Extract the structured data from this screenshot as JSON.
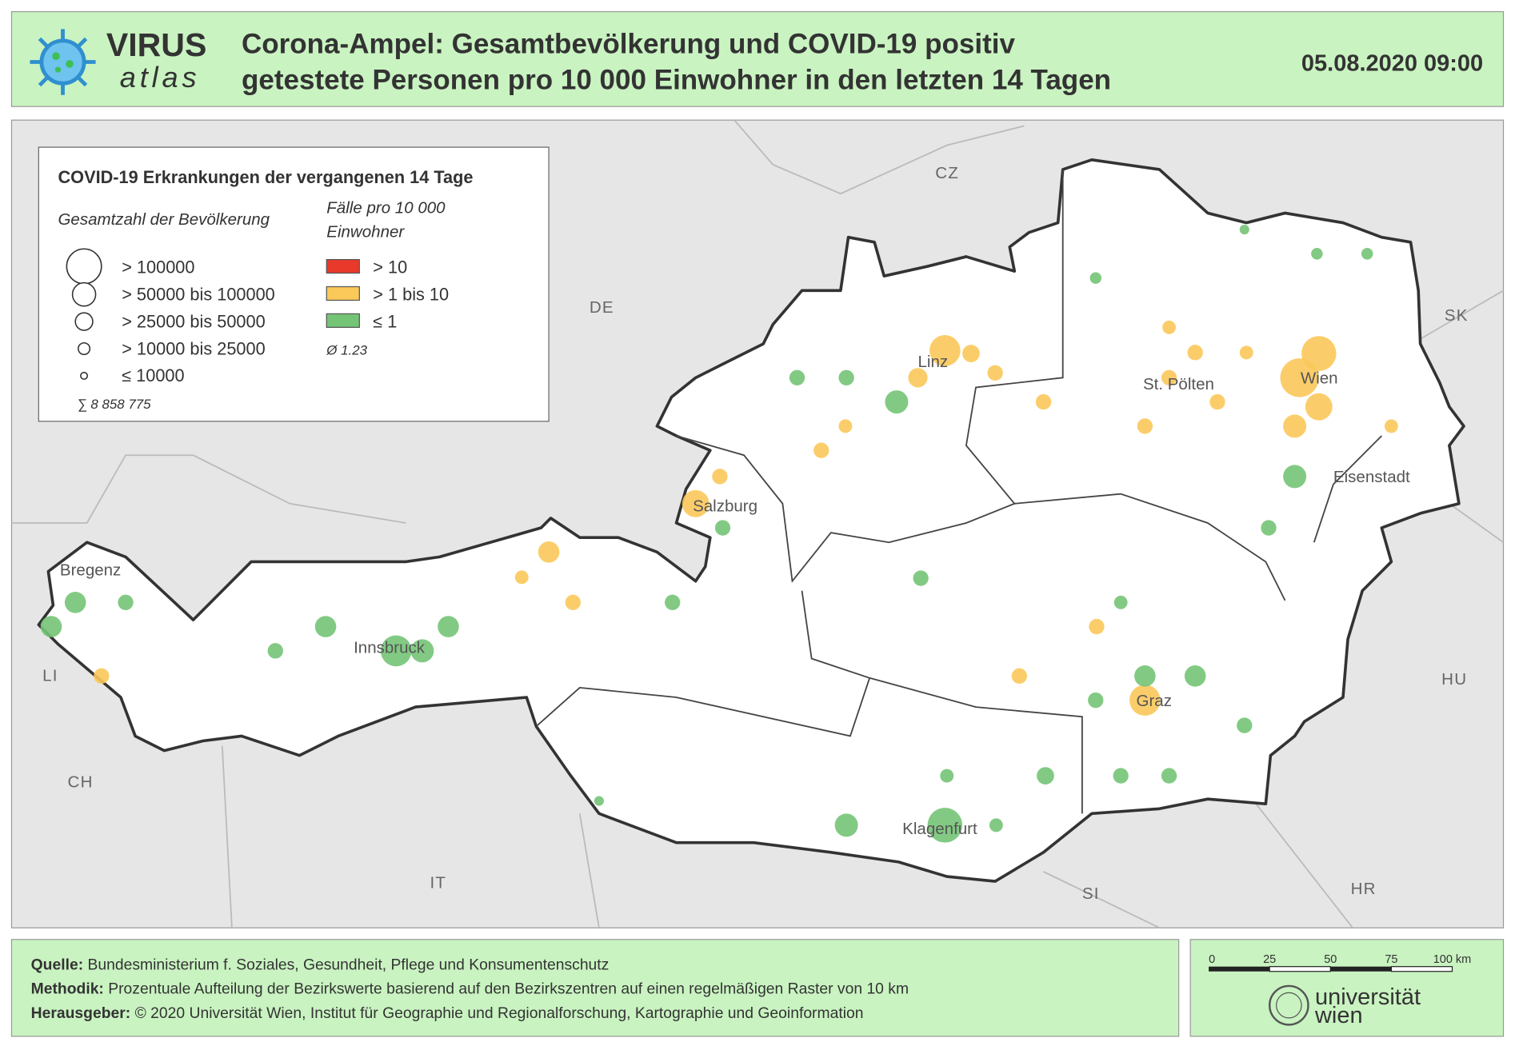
{
  "header": {
    "logo_top": "VIRUS",
    "logo_bottom": "atlas",
    "title_lines": [
      "Corona-Ampel: Gesamtbevölkerung und COVID-19 positiv",
      "getestete Personen pro 10 000 Einwohner in den letzten 14 Tagen"
    ],
    "timestamp": "05.08.2020 09:00"
  },
  "legend": {
    "title": "COVID-19 Erkrankungen der vergangenen 14 Tage",
    "size_heading": "Gesamtzahl der Bevölkerung",
    "color_heading_lines": [
      "Fälle pro 10 000",
      "Einwohner"
    ],
    "sizes": [
      "> 100000",
      "> 50000  bis  100000",
      "> 25000  bis  50000",
      "> 10000  bis  25000",
      "≤ 10000"
    ],
    "colors": [
      {
        "label": "> 10",
        "color": "#e8392a"
      },
      {
        "label": "> 1  bis  10",
        "color": "#fbc85a"
      },
      {
        "label": "≤ 1",
        "color": "#74c476"
      }
    ],
    "average": "Ø  1.23",
    "total": "∑  8 858 775"
  },
  "map": {
    "countries": [
      "CZ",
      "DE",
      "SK",
      "HU",
      "CH",
      "IT",
      "SI",
      "HR",
      "LI"
    ],
    "cities": [
      "Linz",
      "St. Pölten",
      "Wien",
      "Eisenstadt",
      "Salzburg",
      "Bregenz",
      "Innsbruck",
      "Graz",
      "Klagenfurt"
    ]
  },
  "footer": {
    "lines": [
      {
        "label": "Quelle:",
        "text": "Bundesministerium f. Soziales, Gesundheit, Pflege und Konsumentenschutz"
      },
      {
        "label": "Methodik:",
        "text": "Prozentuale Aufteilung der Bezirkswerte basierend auf den Bezirkszentren auf einen regelmäßigen Raster von 10 km"
      },
      {
        "label": "Herausgeber:",
        "text": "© 2020 Universität Wien, Institut für Geographie und Regionalforschung, Kartographie und Geoinformation"
      }
    ]
  },
  "scale": {
    "ticks": [
      "0",
      "25",
      "50",
      "75",
      "100 km"
    ]
  },
  "publisher_logo": [
    "universität",
    "wien"
  ]
}
